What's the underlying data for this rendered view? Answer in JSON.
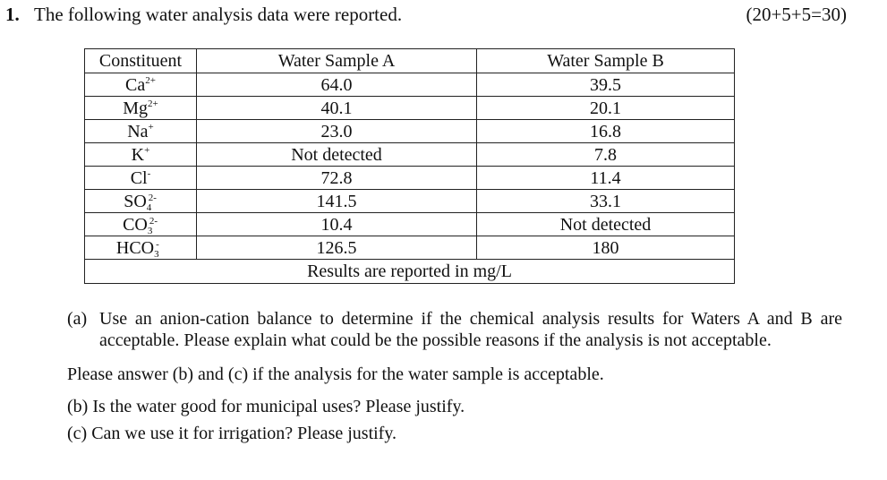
{
  "question": {
    "number": "1.",
    "title": "The following water analysis data were reported.",
    "points": "(20+5+5=30)"
  },
  "table": {
    "headers": [
      "Constituent",
      "Water Sample A",
      "Water Sample B"
    ],
    "rows": [
      {
        "ion": "Ca",
        "sub": "",
        "charge": "2+",
        "a": "64.0",
        "b": "39.5"
      },
      {
        "ion": "Mg",
        "sub": "",
        "charge": "2+",
        "a": "40.1",
        "b": "20.1"
      },
      {
        "ion": "Na",
        "sub": "",
        "charge": "+",
        "a": "23.0",
        "b": "16.8"
      },
      {
        "ion": "K",
        "sub": "",
        "charge": "+",
        "a": "Not detected",
        "b": "7.8"
      },
      {
        "ion": "Cl",
        "sub": "",
        "charge": "-",
        "a": "72.8",
        "b": "11.4"
      },
      {
        "ion": "SO",
        "sub": "4",
        "charge": "2-",
        "a": "141.5",
        "b": "33.1"
      },
      {
        "ion": "CO",
        "sub": "3",
        "charge": "2-",
        "a": "10.4",
        "b": "Not detected"
      },
      {
        "ion": "HCO",
        "sub": "3",
        "charge": "-",
        "a": "126.5",
        "b": "180"
      }
    ],
    "footer": "Results are reported in mg/L"
  },
  "parts": {
    "a_label": "(a)",
    "a_text": "Use an anion-cation balance to determine if the chemical analysis results for Waters A and B are acceptable. Please explain what could be the possible reasons if the analysis is not acceptable.",
    "note": "Please answer (b) and (c) if the analysis for the water sample is acceptable.",
    "b": "(b) Is the water good for municipal uses? Please justify.",
    "c": "(c) Can we use it for irrigation? Please justify."
  }
}
